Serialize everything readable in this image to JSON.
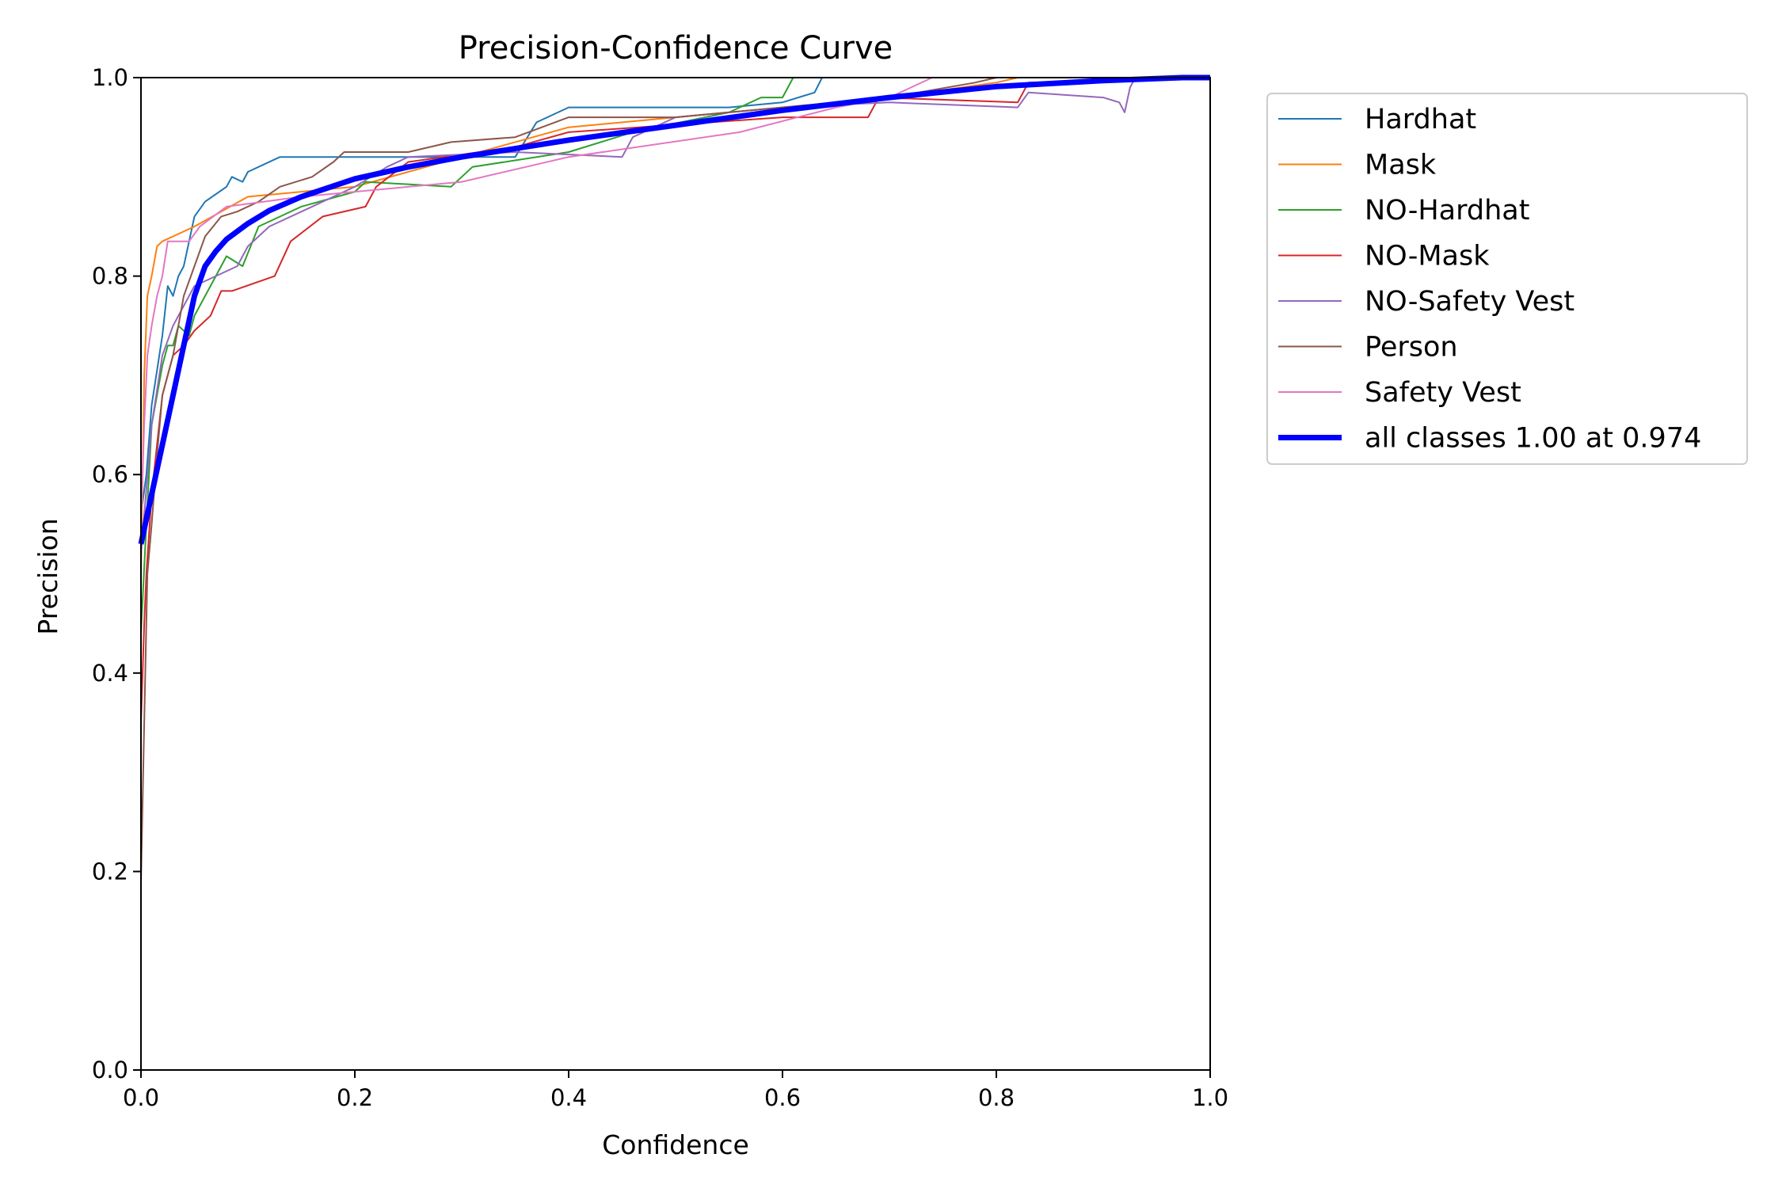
{
  "chart_data": {
    "type": "line",
    "title": "Precision-Confidence Curve",
    "xlabel": "Confidence",
    "ylabel": "Precision",
    "xlim": [
      0,
      1
    ],
    "ylim": [
      0,
      1
    ],
    "xticks": [
      "0.0",
      "0.2",
      "0.4",
      "0.6",
      "0.8",
      "1.0"
    ],
    "yticks": [
      "0.0",
      "0.2",
      "0.4",
      "0.6",
      "0.8",
      "1.0"
    ],
    "grid": false,
    "legend_position": "outside-top-right",
    "series": [
      {
        "name": "Hardhat",
        "color": "#1f77b4",
        "width": 2,
        "points": [
          [
            0,
            0.56
          ],
          [
            0.005,
            0.6
          ],
          [
            0.01,
            0.67
          ],
          [
            0.02,
            0.74
          ],
          [
            0.025,
            0.79
          ],
          [
            0.03,
            0.78
          ],
          [
            0.035,
            0.8
          ],
          [
            0.04,
            0.81
          ],
          [
            0.05,
            0.86
          ],
          [
            0.06,
            0.875
          ],
          [
            0.08,
            0.89
          ],
          [
            0.085,
            0.9
          ],
          [
            0.095,
            0.895
          ],
          [
            0.1,
            0.905
          ],
          [
            0.13,
            0.92
          ],
          [
            0.2,
            0.92
          ],
          [
            0.35,
            0.92
          ],
          [
            0.37,
            0.955
          ],
          [
            0.4,
            0.97
          ],
          [
            0.55,
            0.97
          ],
          [
            0.6,
            0.975
          ],
          [
            0.63,
            0.985
          ],
          [
            0.637,
            1.0
          ],
          [
            1.0,
            1.0
          ]
        ]
      },
      {
        "name": "Mask",
        "color": "#ff7f0e",
        "width": 2,
        "points": [
          [
            0,
            0.5
          ],
          [
            0.003,
            0.7
          ],
          [
            0.006,
            0.78
          ],
          [
            0.01,
            0.8
          ],
          [
            0.015,
            0.83
          ],
          [
            0.02,
            0.835
          ],
          [
            0.05,
            0.85
          ],
          [
            0.1,
            0.88
          ],
          [
            0.2,
            0.89
          ],
          [
            0.3,
            0.92
          ],
          [
            0.4,
            0.95
          ],
          [
            0.5,
            0.96
          ],
          [
            0.6,
            0.97
          ],
          [
            0.7,
            0.98
          ],
          [
            0.8,
            0.995
          ],
          [
            0.82,
            1.0
          ],
          [
            1.0,
            1.0
          ]
        ]
      },
      {
        "name": "NO-Hardhat",
        "color": "#2ca02c",
        "width": 2,
        "points": [
          [
            0,
            0.44
          ],
          [
            0.005,
            0.55
          ],
          [
            0.01,
            0.65
          ],
          [
            0.02,
            0.71
          ],
          [
            0.025,
            0.73
          ],
          [
            0.03,
            0.73
          ],
          [
            0.035,
            0.75
          ],
          [
            0.045,
            0.74
          ],
          [
            0.05,
            0.76
          ],
          [
            0.06,
            0.78
          ],
          [
            0.07,
            0.8
          ],
          [
            0.08,
            0.82
          ],
          [
            0.095,
            0.81
          ],
          [
            0.11,
            0.85
          ],
          [
            0.15,
            0.87
          ],
          [
            0.2,
            0.885
          ],
          [
            0.21,
            0.895
          ],
          [
            0.29,
            0.89
          ],
          [
            0.31,
            0.91
          ],
          [
            0.4,
            0.925
          ],
          [
            0.46,
            0.945
          ],
          [
            0.55,
            0.965
          ],
          [
            0.58,
            0.98
          ],
          [
            0.6,
            0.98
          ],
          [
            0.61,
            1.0
          ],
          [
            1.0,
            1.0
          ]
        ]
      },
      {
        "name": "NO-Mask",
        "color": "#d62728",
        "width": 2,
        "points": [
          [
            0,
            0.35
          ],
          [
            0.003,
            0.45
          ],
          [
            0.005,
            0.5
          ],
          [
            0.01,
            0.58
          ],
          [
            0.02,
            0.68
          ],
          [
            0.03,
            0.72
          ],
          [
            0.04,
            0.73
          ],
          [
            0.05,
            0.745
          ],
          [
            0.065,
            0.76
          ],
          [
            0.075,
            0.785
          ],
          [
            0.085,
            0.785
          ],
          [
            0.125,
            0.8
          ],
          [
            0.14,
            0.835
          ],
          [
            0.17,
            0.86
          ],
          [
            0.21,
            0.87
          ],
          [
            0.22,
            0.89
          ],
          [
            0.25,
            0.915
          ],
          [
            0.35,
            0.93
          ],
          [
            0.4,
            0.945
          ],
          [
            0.6,
            0.96
          ],
          [
            0.68,
            0.96
          ],
          [
            0.69,
            0.98
          ],
          [
            0.82,
            0.975
          ],
          [
            0.83,
            0.995
          ],
          [
            1.0,
            1.0
          ]
        ]
      },
      {
        "name": "NO-Safety Vest",
        "color": "#9467bd",
        "width": 2,
        "points": [
          [
            0,
            0.52
          ],
          [
            0.01,
            0.65
          ],
          [
            0.02,
            0.72
          ],
          [
            0.03,
            0.75
          ],
          [
            0.05,
            0.79
          ],
          [
            0.07,
            0.8
          ],
          [
            0.09,
            0.81
          ],
          [
            0.1,
            0.83
          ],
          [
            0.12,
            0.85
          ],
          [
            0.15,
            0.865
          ],
          [
            0.2,
            0.89
          ],
          [
            0.23,
            0.91
          ],
          [
            0.25,
            0.92
          ],
          [
            0.35,
            0.925
          ],
          [
            0.45,
            0.92
          ],
          [
            0.46,
            0.94
          ],
          [
            0.5,
            0.96
          ],
          [
            0.6,
            0.97
          ],
          [
            0.7,
            0.975
          ],
          [
            0.82,
            0.97
          ],
          [
            0.83,
            0.985
          ],
          [
            0.9,
            0.98
          ],
          [
            0.915,
            0.975
          ],
          [
            0.92,
            0.965
          ],
          [
            0.925,
            0.99
          ],
          [
            0.93,
            1.0
          ],
          [
            1.0,
            1.0
          ]
        ]
      },
      {
        "name": "Person",
        "color": "#8c564b",
        "width": 2,
        "points": [
          [
            0,
            0.19
          ],
          [
            0.003,
            0.35
          ],
          [
            0.006,
            0.5
          ],
          [
            0.01,
            0.55
          ],
          [
            0.015,
            0.62
          ],
          [
            0.02,
            0.68
          ],
          [
            0.03,
            0.72
          ],
          [
            0.04,
            0.78
          ],
          [
            0.05,
            0.81
          ],
          [
            0.06,
            0.84
          ],
          [
            0.075,
            0.86
          ],
          [
            0.09,
            0.865
          ],
          [
            0.11,
            0.875
          ],
          [
            0.13,
            0.89
          ],
          [
            0.16,
            0.9
          ],
          [
            0.18,
            0.915
          ],
          [
            0.19,
            0.925
          ],
          [
            0.25,
            0.925
          ],
          [
            0.29,
            0.935
          ],
          [
            0.35,
            0.94
          ],
          [
            0.4,
            0.96
          ],
          [
            0.5,
            0.96
          ],
          [
            0.6,
            0.97
          ],
          [
            0.7,
            0.98
          ],
          [
            0.78,
            0.995
          ],
          [
            0.8,
            1.0
          ],
          [
            1.0,
            1.0
          ]
        ]
      },
      {
        "name": "Safety Vest",
        "color": "#e377c2",
        "width": 2,
        "points": [
          [
            0,
            0.55
          ],
          [
            0.003,
            0.65
          ],
          [
            0.006,
            0.72
          ],
          [
            0.01,
            0.75
          ],
          [
            0.015,
            0.78
          ],
          [
            0.02,
            0.8
          ],
          [
            0.025,
            0.835
          ],
          [
            0.045,
            0.835
          ],
          [
            0.055,
            0.85
          ],
          [
            0.08,
            0.87
          ],
          [
            0.15,
            0.88
          ],
          [
            0.2,
            0.885
          ],
          [
            0.3,
            0.895
          ],
          [
            0.4,
            0.92
          ],
          [
            0.56,
            0.945
          ],
          [
            0.65,
            0.97
          ],
          [
            0.7,
            0.98
          ],
          [
            0.74,
            1.0
          ],
          [
            1.0,
            1.0
          ]
        ]
      },
      {
        "name": "all classes 1.00 at 0.974",
        "color": "#0000ff",
        "width": 7,
        "points": [
          [
            0,
            0.53
          ],
          [
            0.01,
            0.58
          ],
          [
            0.02,
            0.63
          ],
          [
            0.03,
            0.68
          ],
          [
            0.04,
            0.73
          ],
          [
            0.05,
            0.78
          ],
          [
            0.06,
            0.81
          ],
          [
            0.07,
            0.825
          ],
          [
            0.08,
            0.837
          ],
          [
            0.1,
            0.853
          ],
          [
            0.12,
            0.866
          ],
          [
            0.15,
            0.88
          ],
          [
            0.2,
            0.898
          ],
          [
            0.25,
            0.91
          ],
          [
            0.3,
            0.92
          ],
          [
            0.4,
            0.937
          ],
          [
            0.5,
            0.952
          ],
          [
            0.6,
            0.967
          ],
          [
            0.7,
            0.98
          ],
          [
            0.8,
            0.991
          ],
          [
            0.9,
            0.997
          ],
          [
            0.974,
            1.0
          ],
          [
            1.0,
            1.0
          ]
        ]
      }
    ]
  }
}
